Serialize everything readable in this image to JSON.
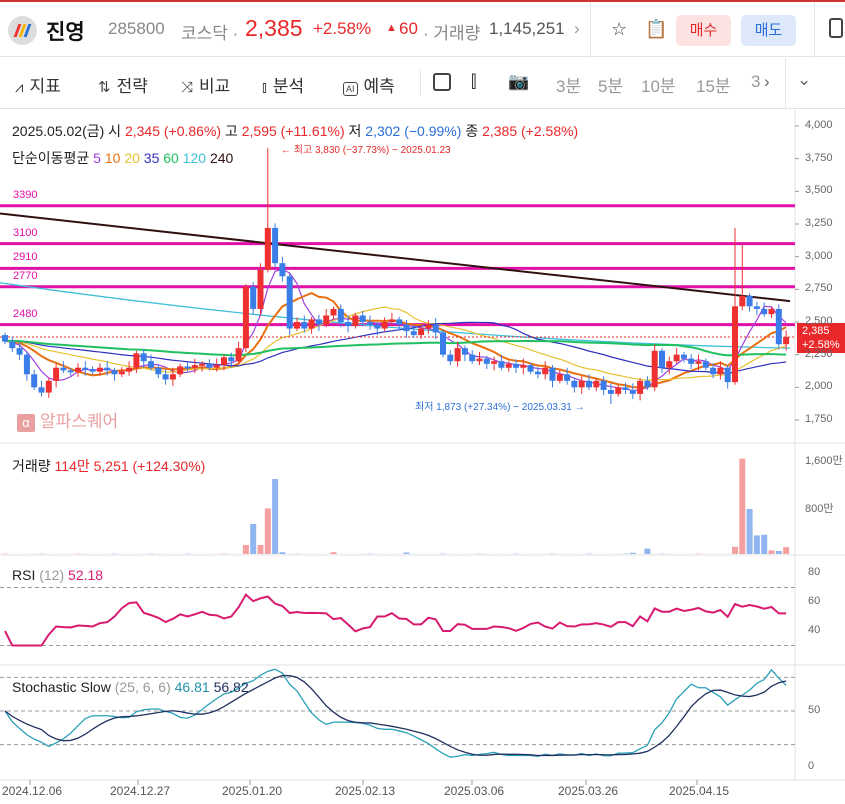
{
  "header": {
    "name": "진영",
    "code": "285800",
    "market": "코스닥 ·",
    "price": "2,385",
    "change_pct": "+2.58%",
    "change_icon": "triangle-up",
    "change_abs": "60",
    "volume_label": "· 거래량",
    "volume": "1,145,251",
    "chevron": "›",
    "buy": "매수",
    "sell": "매도"
  },
  "toolbar": {
    "items": [
      {
        "icon": "indicator",
        "label": "지표"
      },
      {
        "icon": "strategy",
        "label": "전략"
      },
      {
        "icon": "compare",
        "label": "비교"
      },
      {
        "icon": "analysis",
        "label": "분석"
      },
      {
        "icon": "ai",
        "label": "예측"
      }
    ],
    "timeframes": [
      "3분",
      "5분",
      "10분",
      "15분",
      "3"
    ],
    "more": "›",
    "dropdown": "⌄"
  },
  "info": {
    "date": "2025.05.02(금)",
    "open_label": "시",
    "open": "2,345 (+0.86%)",
    "high_label": "고",
    "high": "2,595 (+11.61%)",
    "low_label": "저",
    "low": "2,302 (−0.99%)",
    "close_label": "종",
    "close": "2,385 (+2.58%)",
    "ma_label": "단순이동평균",
    "ma_periods": [
      "5",
      "10",
      "20",
      "35",
      "60",
      "120",
      "240"
    ]
  },
  "annotations": {
    "max": "← 최고 3,830 (−37.73%) − 2025.01.23",
    "min": "최저 1,873 (+27.34%) − 2025.03.31 →"
  },
  "watermark": "알파스퀘어",
  "current": {
    "price": "2,385",
    "pct": "+2.58%"
  },
  "volume_pane": {
    "label": "거래량",
    "value": "114만 5,251 (+124.30%)",
    "ticks": [
      "1,600만",
      "800만"
    ]
  },
  "rsi_pane": {
    "label": "RSI",
    "param": "(12)",
    "value": "52.18",
    "ticks": [
      "80",
      "60",
      "40"
    ]
  },
  "stoch_pane": {
    "label": "Stochastic Slow",
    "param": "(25, 6, 6)",
    "k": "46.81",
    "d": "56.82",
    "ticks": [
      "50",
      "0"
    ]
  },
  "colors": {
    "up": "#ee3030",
    "down": "#3a7de8",
    "hline": "#e010a8",
    "ma": [
      "#a040e0",
      "#e87010",
      "#e8c030",
      "#3030c0",
      "#20c060",
      "#40c0d8",
      "#301010"
    ]
  },
  "chart_data": {
    "type": "candlestick",
    "y_ticks": [
      "4,000",
      "3,750",
      "3,500",
      "3,250",
      "3,000",
      "2,750",
      "2,500",
      "2,250",
      "2,000",
      "1,750"
    ],
    "ylim": [
      1650,
      4100
    ],
    "x_ticks": [
      "2024.12.06",
      "2024.12.27",
      "2025.01.20",
      "2025.02.13",
      "2025.03.06",
      "2025.03.26",
      "2025.04.15"
    ],
    "horizontal_lines": [
      3390,
      3100,
      2910,
      2770,
      2480
    ],
    "closes": [
      2350,
      2300,
      2250,
      2100,
      2000,
      1960,
      2050,
      2150,
      2130,
      2120,
      2150,
      2140,
      2120,
      2150,
      2130,
      2100,
      2120,
      2150,
      2260,
      2200,
      2150,
      2100,
      2060,
      2100,
      2160,
      2150,
      2170,
      2180,
      2150,
      2170,
      2230,
      2200,
      2300,
      2770,
      2600,
      2900,
      3220,
      2950,
      2850,
      2450,
      2500,
      2450,
      2520,
      2480,
      2550,
      2600,
      2500,
      2470,
      2550,
      2500,
      2480,
      2450,
      2500,
      2520,
      2480,
      2430,
      2400,
      2450,
      2480,
      2420,
      2250,
      2200,
      2300,
      2250,
      2200,
      2220,
      2180,
      2200,
      2150,
      2180,
      2150,
      2170,
      2120,
      2100,
      2150,
      2050,
      2100,
      2050,
      2000,
      2050,
      2000,
      2050,
      1980,
      1950,
      2000,
      1980,
      1950,
      2050,
      2000,
      2280,
      2150,
      2200,
      2250,
      2220,
      2180,
      2200,
      2150,
      2100,
      2150,
      2040,
      2620,
      2700,
      2620,
      2600,
      2560,
      2600,
      2330,
      2385
    ],
    "high_max": 3830,
    "low_min": 1873,
    "ma120": [
      2800,
      2300
    ],
    "ma240": [
      3330,
      2660
    ],
    "volume_man": {
      "33": 150,
      "34": 500,
      "35": 150,
      "36": 760,
      "37": 1250,
      "38": 30,
      "45": 30,
      "55": 25,
      "86": 20,
      "88": 90,
      "100": 120,
      "101": 1590,
      "102": 750,
      "103": 310,
      "104": 320,
      "105": 60,
      "106": 50,
      "107": 114
    }
  }
}
